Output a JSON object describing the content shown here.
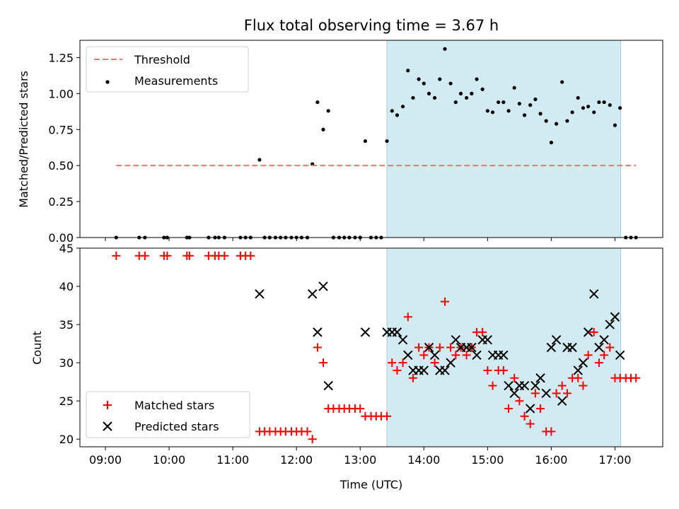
{
  "chart_data": {
    "title": "Flux total observing time = 3.67 h",
    "xlabel": "Time (UTC)",
    "x_range_hours": [
      8.6,
      17.75
    ],
    "x_ticks": [
      {
        "h": 9,
        "label": "09:00"
      },
      {
        "h": 10,
        "label": "10:00"
      },
      {
        "h": 11,
        "label": "11:00"
      },
      {
        "h": 12,
        "label": "12:00"
      },
      {
        "h": 13,
        "label": "13:00"
      },
      {
        "h": 14,
        "label": "14:00"
      },
      {
        "h": 15,
        "label": "15:00"
      },
      {
        "h": 16,
        "label": "16:00"
      },
      {
        "h": 17,
        "label": "17:00"
      }
    ],
    "shaded_interval_hours": [
      13.42,
      17.09
    ],
    "shaded_color": "#add8e6",
    "panels": [
      {
        "id": "ratio",
        "type": "scatter",
        "ylabel": "Matched/Predicted stars",
        "ylim": [
          0,
          1.37
        ],
        "yticks": [
          "0.00",
          "0.25",
          "0.50",
          "0.75",
          "1.00",
          "1.25"
        ],
        "threshold": {
          "name": "Threshold",
          "value": 0.5,
          "x_range_hours": [
            9.17,
            17.33
          ],
          "color": "#ff7070"
        },
        "legend": [
          "Threshold",
          "Measurements"
        ],
        "series": [
          {
            "name": "Measurements",
            "color": "#000000",
            "points": [
              [
                9.17,
                0
              ],
              [
                9.53,
                0
              ],
              [
                9.62,
                0
              ],
              [
                9.92,
                0
              ],
              [
                9.97,
                0
              ],
              [
                10.28,
                0
              ],
              [
                10.32,
                0
              ],
              [
                10.62,
                0
              ],
              [
                10.72,
                0
              ],
              [
                10.78,
                0
              ],
              [
                10.87,
                0
              ],
              [
                11.12,
                0
              ],
              [
                11.2,
                0
              ],
              [
                11.28,
                0
              ],
              [
                11.42,
                0.54
              ],
              [
                11.5,
                0
              ],
              [
                11.58,
                0
              ],
              [
                11.67,
                0
              ],
              [
                11.75,
                0
              ],
              [
                11.83,
                0
              ],
              [
                11.92,
                0
              ],
              [
                12.0,
                0
              ],
              [
                12.08,
                0
              ],
              [
                12.17,
                0
              ],
              [
                12.25,
                0.51
              ],
              [
                12.33,
                0.94
              ],
              [
                12.42,
                0.75
              ],
              [
                12.5,
                0.88
              ],
              [
                12.58,
                0
              ],
              [
                12.67,
                0
              ],
              [
                12.75,
                0
              ],
              [
                12.83,
                0
              ],
              [
                12.92,
                0
              ],
              [
                13.0,
                0
              ],
              [
                13.08,
                0.67
              ],
              [
                13.17,
                0
              ],
              [
                13.25,
                0
              ],
              [
                13.33,
                0
              ],
              [
                13.42,
                0.67
              ],
              [
                13.5,
                0.88
              ],
              [
                13.58,
                0.85
              ],
              [
                13.67,
                0.91
              ],
              [
                13.75,
                1.16
              ],
              [
                13.83,
                0.97
              ],
              [
                13.92,
                1.1
              ],
              [
                14.0,
                1.07
              ],
              [
                14.08,
                1.0
              ],
              [
                14.17,
                0.97
              ],
              [
                14.25,
                1.1
              ],
              [
                14.33,
                1.31
              ],
              [
                14.42,
                1.07
              ],
              [
                14.5,
                0.94
              ],
              [
                14.58,
                1.0
              ],
              [
                14.67,
                0.97
              ],
              [
                14.75,
                1.0
              ],
              [
                14.83,
                1.1
              ],
              [
                14.92,
                1.03
              ],
              [
                15.0,
                0.88
              ],
              [
                15.08,
                0.87
              ],
              [
                15.17,
                0.94
              ],
              [
                15.25,
                0.94
              ],
              [
                15.33,
                0.88
              ],
              [
                15.42,
                1.04
              ],
              [
                15.5,
                0.93
              ],
              [
                15.58,
                0.85
              ],
              [
                15.67,
                0.92
              ],
              [
                15.75,
                0.96
              ],
              [
                15.83,
                0.86
              ],
              [
                15.92,
                0.81
              ],
              [
                16.0,
                0.66
              ],
              [
                16.08,
                0.79
              ],
              [
                16.17,
                1.08
              ],
              [
                16.25,
                0.81
              ],
              [
                16.33,
                0.87
              ],
              [
                16.42,
                0.97
              ],
              [
                16.5,
                0.9
              ],
              [
                16.58,
                0.91
              ],
              [
                16.67,
                0.87
              ],
              [
                16.75,
                0.94
              ],
              [
                16.83,
                0.94
              ],
              [
                16.92,
                0.92
              ],
              [
                17.0,
                0.78
              ],
              [
                17.08,
                0.9
              ],
              [
                17.17,
                0
              ],
              [
                17.25,
                0
              ],
              [
                17.33,
                0
              ]
            ]
          }
        ]
      },
      {
        "id": "counts",
        "type": "scatter",
        "ylabel": "Count",
        "ylim": [
          19,
          45
        ],
        "yticks": [
          "20",
          "25",
          "30",
          "35",
          "40",
          "45"
        ],
        "legend": [
          "Matched stars",
          "Predicted stars"
        ],
        "series": [
          {
            "name": "Matched stars",
            "marker": "+",
            "color": "#ff0000",
            "points": [
              [
                9.17,
                44
              ],
              [
                9.53,
                44
              ],
              [
                9.62,
                44
              ],
              [
                9.92,
                44
              ],
              [
                9.97,
                44
              ],
              [
                10.28,
                44
              ],
              [
                10.32,
                44
              ],
              [
                10.62,
                44
              ],
              [
                10.72,
                44
              ],
              [
                10.78,
                44
              ],
              [
                10.87,
                44
              ],
              [
                11.12,
                44
              ],
              [
                11.2,
                44
              ],
              [
                11.28,
                44
              ],
              [
                11.42,
                21
              ],
              [
                11.5,
                21
              ],
              [
                11.58,
                21
              ],
              [
                11.67,
                21
              ],
              [
                11.75,
                21
              ],
              [
                11.83,
                21
              ],
              [
                11.92,
                21
              ],
              [
                12.0,
                21
              ],
              [
                12.08,
                21
              ],
              [
                12.17,
                21
              ],
              [
                12.25,
                20
              ],
              [
                12.33,
                32
              ],
              [
                12.42,
                30
              ],
              [
                12.5,
                24
              ],
              [
                12.58,
                24
              ],
              [
                12.67,
                24
              ],
              [
                12.75,
                24
              ],
              [
                12.83,
                24
              ],
              [
                12.92,
                24
              ],
              [
                13.0,
                24
              ],
              [
                13.08,
                23
              ],
              [
                13.17,
                23
              ],
              [
                13.25,
                23
              ],
              [
                13.33,
                23
              ],
              [
                13.42,
                23
              ],
              [
                13.5,
                30
              ],
              [
                13.58,
                29
              ],
              [
                13.67,
                30
              ],
              [
                13.75,
                36
              ],
              [
                13.83,
                28
              ],
              [
                13.92,
                32
              ],
              [
                14.0,
                31
              ],
              [
                14.08,
                32
              ],
              [
                14.17,
                30
              ],
              [
                14.25,
                32
              ],
              [
                14.33,
                38
              ],
              [
                14.42,
                32
              ],
              [
                14.5,
                31
              ],
              [
                14.58,
                32
              ],
              [
                14.67,
                31
              ],
              [
                14.75,
                32
              ],
              [
                14.83,
                34
              ],
              [
                14.92,
                34
              ],
              [
                15.0,
                29
              ],
              [
                15.08,
                27
              ],
              [
                15.17,
                29
              ],
              [
                15.25,
                29
              ],
              [
                15.33,
                24
              ],
              [
                15.42,
                28
              ],
              [
                15.5,
                25
              ],
              [
                15.58,
                23
              ],
              [
                15.67,
                22
              ],
              [
                15.75,
                26
              ],
              [
                15.83,
                24
              ],
              [
                15.92,
                21
              ],
              [
                16.0,
                21
              ],
              [
                16.08,
                26
              ],
              [
                16.17,
                27
              ],
              [
                16.25,
                26
              ],
              [
                16.33,
                28
              ],
              [
                16.42,
                28
              ],
              [
                16.5,
                27
              ],
              [
                16.58,
                31
              ],
              [
                16.67,
                34
              ],
              [
                16.75,
                30
              ],
              [
                16.83,
                31
              ],
              [
                16.92,
                32
              ],
              [
                17.0,
                28
              ],
              [
                17.08,
                28
              ],
              [
                17.17,
                28
              ],
              [
                17.25,
                28
              ],
              [
                17.33,
                28
              ]
            ]
          },
          {
            "name": "Predicted stars",
            "marker": "x",
            "color": "#000000",
            "points": [
              [
                11.42,
                39
              ],
              [
                12.25,
                39
              ],
              [
                12.33,
                34
              ],
              [
                12.42,
                40
              ],
              [
                12.5,
                27
              ],
              [
                13.08,
                34
              ],
              [
                13.42,
                34
              ],
              [
                13.5,
                34
              ],
              [
                13.58,
                34
              ],
              [
                13.67,
                33
              ],
              [
                13.75,
                31
              ],
              [
                13.83,
                29
              ],
              [
                13.92,
                29
              ],
              [
                14.0,
                29
              ],
              [
                14.08,
                32
              ],
              [
                14.17,
                31
              ],
              [
                14.25,
                29
              ],
              [
                14.33,
                29
              ],
              [
                14.42,
                30
              ],
              [
                14.5,
                33
              ],
              [
                14.58,
                32
              ],
              [
                14.67,
                32
              ],
              [
                14.75,
                32
              ],
              [
                14.83,
                31
              ],
              [
                14.92,
                33
              ],
              [
                15.0,
                33
              ],
              [
                15.08,
                31
              ],
              [
                15.17,
                31
              ],
              [
                15.25,
                31
              ],
              [
                15.33,
                27
              ],
              [
                15.42,
                26
              ],
              [
                15.5,
                27
              ],
              [
                15.58,
                27
              ],
              [
                15.67,
                24
              ],
              [
                15.75,
                27
              ],
              [
                15.83,
                28
              ],
              [
                15.92,
                26
              ],
              [
                16.0,
                32
              ],
              [
                16.08,
                33
              ],
              [
                16.17,
                25
              ],
              [
                16.25,
                32
              ],
              [
                16.33,
                32
              ],
              [
                16.42,
                29
              ],
              [
                16.5,
                30
              ],
              [
                16.58,
                34
              ],
              [
                16.67,
                39
              ],
              [
                16.75,
                32
              ],
              [
                16.83,
                33
              ],
              [
                16.92,
                35
              ],
              [
                17.0,
                36
              ],
              [
                17.08,
                31
              ]
            ]
          }
        ]
      }
    ]
  }
}
